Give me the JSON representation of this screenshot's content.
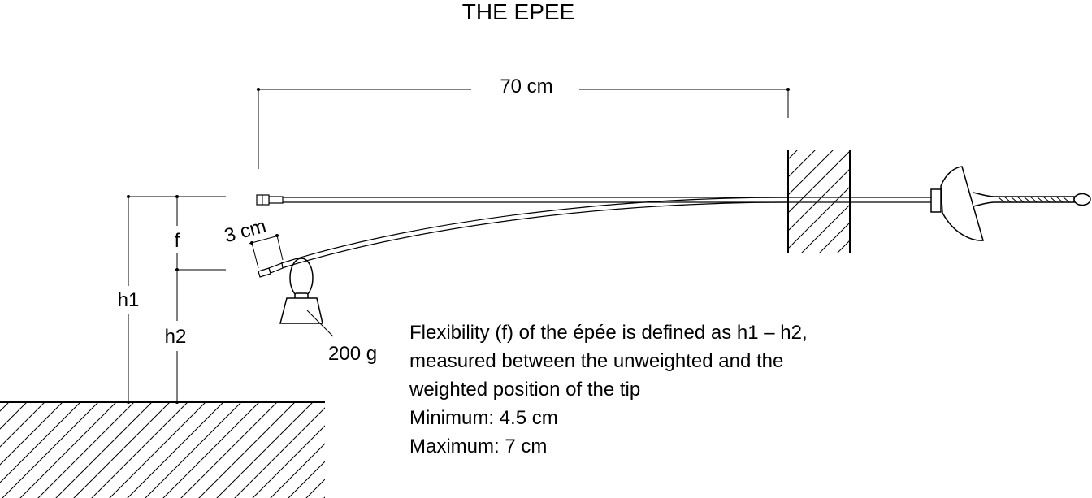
{
  "title": "THE EPEE",
  "dimensions": {
    "length": "70 cm",
    "offset": "3 cm",
    "flexibility": "f",
    "height1": "h1",
    "height2": "h2",
    "weight": "200 g"
  },
  "description": {
    "line1": "Flexibility (f) of the épée is defined as h1 – h2,",
    "line2": "measured between the unweighted and the",
    "line3": "weighted position of the tip",
    "minimum": "Minimum: 4.5 cm",
    "maximum": "Maximum: 7 cm"
  },
  "colors": {
    "ink": "#000000",
    "background": "#ffffff"
  }
}
